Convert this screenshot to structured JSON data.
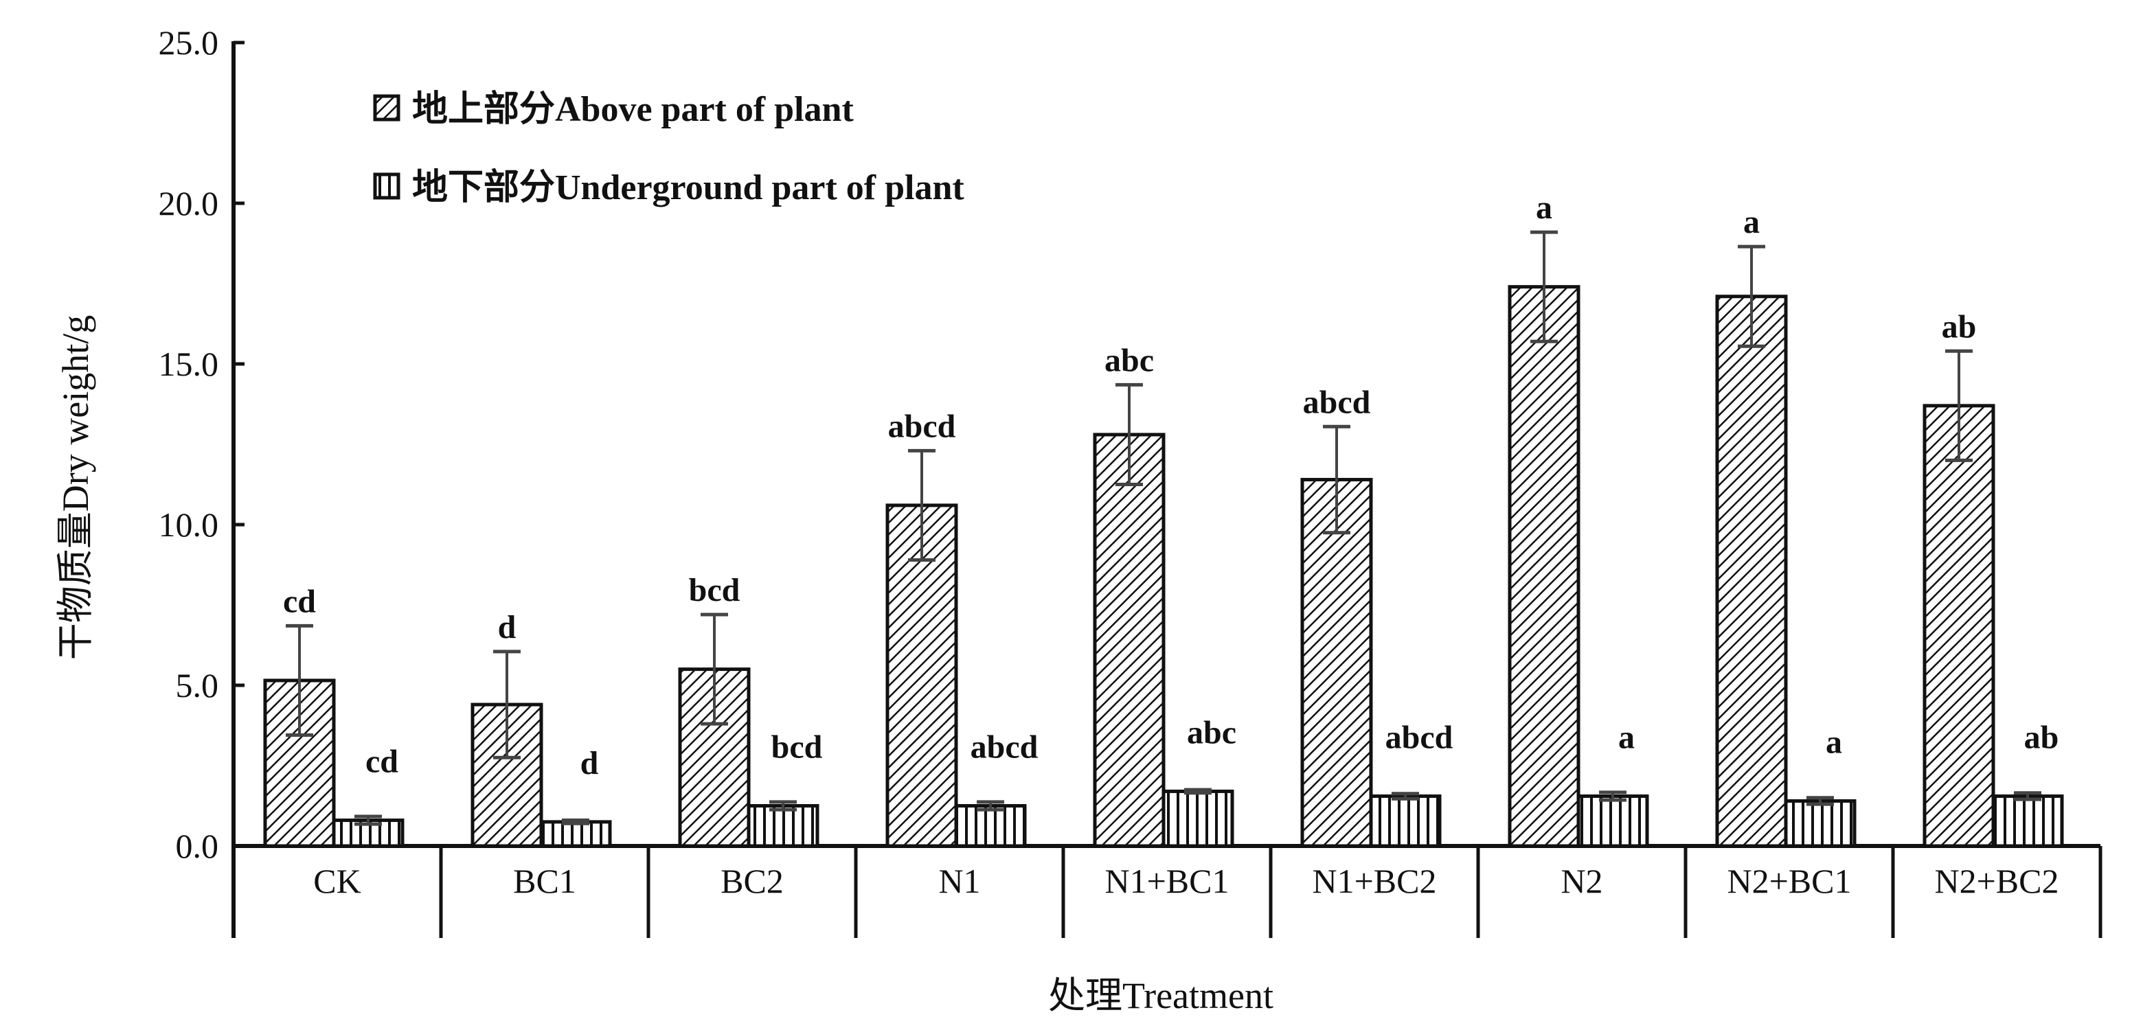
{
  "chart_data": {
    "type": "bar",
    "title": "",
    "xlabel": "处理Treatment",
    "ylabel": "干物质量Dry weight/g",
    "ylim": [
      0,
      25
    ],
    "yticks": [
      "0.0",
      "5.0",
      "10.0",
      "15.0",
      "20.0",
      "25.0"
    ],
    "ytick_values": [
      0,
      5,
      10,
      15,
      20,
      25
    ],
    "grid": false,
    "legend_position": "top-left",
    "categories": [
      "CK",
      "BC1",
      "BC2",
      "N1",
      "N1+BC1",
      "N1+BC2",
      "N2",
      "N2+BC1",
      "N2+BC2"
    ],
    "series": [
      {
        "name": "地上部分Above part of plant",
        "pattern": "diagonal-hatch",
        "values": [
          5.15,
          4.4,
          5.5,
          10.6,
          12.8,
          11.4,
          17.4,
          17.1,
          13.7
        ],
        "errors": [
          1.7,
          1.65,
          1.7,
          1.7,
          1.55,
          1.65,
          1.7,
          1.55,
          1.7
        ],
        "significance": [
          "cd",
          "d",
          "bcd",
          "abcd",
          "abc",
          "abcd",
          "a",
          "a",
          "ab"
        ]
      },
      {
        "name": "地下部分Underground part of plant",
        "pattern": "vertical-hatch",
        "values": [
          0.8,
          0.75,
          1.25,
          1.25,
          1.7,
          1.55,
          1.55,
          1.4,
          1.55
        ],
        "errors": [
          0.12,
          0.05,
          0.12,
          0.12,
          0.05,
          0.08,
          0.12,
          0.1,
          0.1
        ],
        "significance": [
          "cd",
          "d",
          "bcd",
          "abcd",
          "abc",
          "abcd",
          "a",
          "a",
          "ab"
        ]
      }
    ]
  },
  "colors": {
    "ink": "#111111",
    "error_bar": "#444444",
    "background": "#ffffff"
  }
}
